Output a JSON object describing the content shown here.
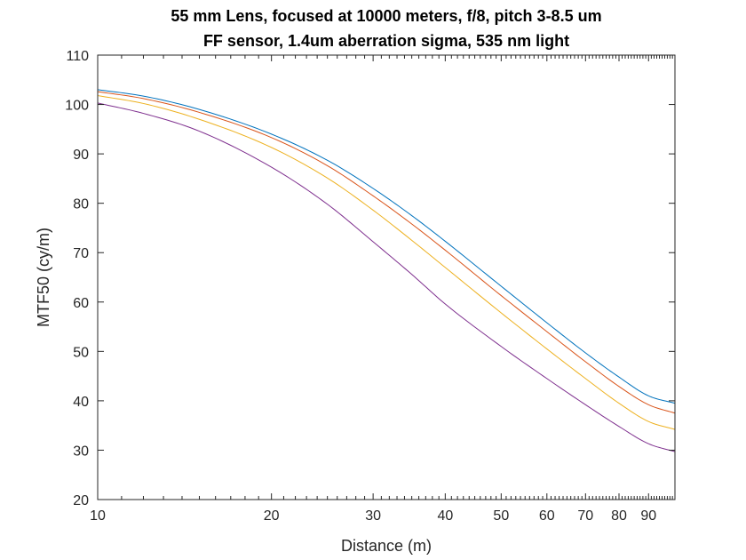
{
  "chart_data": {
    "type": "line",
    "title": "55 mm Lens, focused at 10000 meters, f/8, pitch 3-8.5 um",
    "subtitle": "FF sensor, 1.4um aberration sigma, 535 nm light",
    "xlabel": "Distance (m)",
    "ylabel": "MTF50 (cy/m)",
    "x_scale": "log",
    "xlim": [
      10,
      100
    ],
    "ylim": [
      20,
      110
    ],
    "grid": false,
    "x_ticks": [
      10,
      20,
      30,
      40,
      50,
      60,
      70,
      80,
      90
    ],
    "x_tick_labels": [
      "10",
      "20",
      "30",
      "40",
      "50",
      "60",
      "70",
      "80",
      "90"
    ],
    "y_ticks": [
      20,
      30,
      40,
      50,
      60,
      70,
      80,
      90,
      100,
      110
    ],
    "y_tick_labels": [
      "20",
      "30",
      "40",
      "50",
      "60",
      "70",
      "80",
      "90",
      "100",
      "110"
    ],
    "x": [
      10,
      12,
      15,
      20,
      25,
      30,
      35,
      40,
      50,
      60,
      70,
      80,
      90,
      100
    ],
    "series": [
      {
        "color": "#0072BD",
        "values": [
          103.0,
          101.7,
          99.0,
          94.0,
          88.7,
          83.0,
          77.5,
          72.3,
          63.2,
          55.8,
          49.7,
          44.8,
          41.0,
          39.5
        ]
      },
      {
        "color": "#D95319",
        "values": [
          102.6,
          101.2,
          98.4,
          93.3,
          87.6,
          81.5,
          75.8,
          70.5,
          61.3,
          54.0,
          47.9,
          42.9,
          39.2,
          37.5
        ]
      },
      {
        "color": "#EDB120",
        "values": [
          101.8,
          100.2,
          97.0,
          91.3,
          85.1,
          78.6,
          72.5,
          67.0,
          57.8,
          50.5,
          44.5,
          39.5,
          35.8,
          34.2
        ]
      },
      {
        "color": "#7E2F8E",
        "values": [
          100.3,
          98.2,
          94.6,
          87.3,
          79.8,
          72.2,
          65.6,
          59.6,
          51.0,
          44.5,
          39.2,
          34.8,
          31.3,
          29.7
        ]
      }
    ]
  }
}
